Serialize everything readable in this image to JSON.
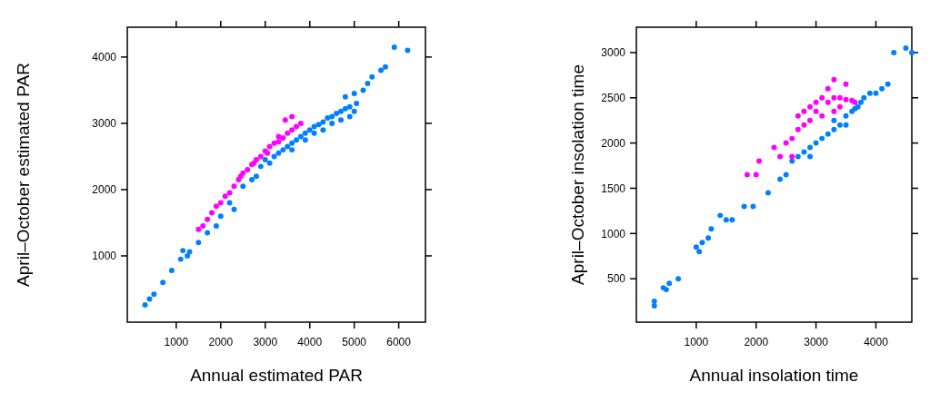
{
  "chart_data": [
    {
      "type": "scatter",
      "xlabel": "Annual estimated PAR",
      "ylabel": "April–October estimated PAR",
      "xlim": [
        -100,
        6600
      ],
      "ylim": [
        0,
        4450
      ],
      "xticks": [
        1000,
        2000,
        3000,
        4000,
        5000,
        6000
      ],
      "yticks": [
        1000,
        2000,
        3000,
        4000
      ],
      "marker": "circle",
      "series": [
        {
          "color": "#0080ff",
          "x": [
            300,
            400,
            500,
            700,
            900,
            1100,
            1150,
            1300,
            1250,
            1500,
            1700,
            1900,
            2000,
            2300,
            2200,
            2500,
            2700,
            2800,
            2900,
            3000,
            3100,
            3200,
            3300,
            3400,
            3500,
            3600,
            3600,
            3700,
            3800,
            3900,
            3900,
            4000,
            4100,
            4100,
            4200,
            4300,
            4300,
            4400,
            4500,
            4500,
            4600,
            4700,
            4700,
            4800,
            4900,
            4900,
            5000,
            5050,
            4800,
            5000,
            5200,
            5300,
            5400,
            5600,
            5700,
            5900,
            6200
          ],
          "values": [
            260,
            350,
            420,
            600,
            780,
            950,
            1080,
            1060,
            1000,
            1200,
            1350,
            1450,
            1600,
            1700,
            1800,
            2050,
            2150,
            2200,
            2350,
            2450,
            2400,
            2500,
            2550,
            2600,
            2650,
            2700,
            2600,
            2750,
            2800,
            2850,
            2750,
            2900,
            2950,
            2850,
            2980,
            3020,
            2900,
            3080,
            3100,
            3000,
            3150,
            3180,
            3050,
            3220,
            3250,
            3100,
            3180,
            3300,
            3400,
            3450,
            3500,
            3600,
            3700,
            3800,
            3850,
            4150,
            4100
          ]
        },
        {
          "color": "#ff00ff",
          "x": [
            1500,
            1600,
            1700,
            1800,
            1900,
            2000,
            2100,
            2200,
            2300,
            2400,
            2450,
            2500,
            2600,
            2700,
            2750,
            2800,
            2900,
            3000,
            3050,
            3100,
            3200,
            3300,
            3300,
            3400,
            3500,
            3600,
            3700,
            3800,
            3450,
            3600
          ],
          "values": [
            1400,
            1450,
            1550,
            1650,
            1750,
            1800,
            1900,
            1950,
            2050,
            2150,
            2200,
            2250,
            2300,
            2380,
            2400,
            2450,
            2500,
            2580,
            2550,
            2650,
            2700,
            2720,
            2800,
            2780,
            2850,
            2900,
            2950,
            3000,
            3050,
            3100
          ]
        }
      ]
    },
    {
      "type": "scatter",
      "xlabel": "Annual insolation time",
      "ylabel": "April–October insolation time",
      "xlim": [
        0,
        4600
      ],
      "ylim": [
        20,
        3280
      ],
      "xticks": [
        1000,
        2000,
        3000,
        4000
      ],
      "yticks": [
        500,
        1000,
        1500,
        2000,
        2500,
        3000
      ],
      "marker": "circle",
      "series": [
        {
          "color": "#0080ff",
          "x": [
            300,
            300,
            450,
            500,
            550,
            700,
            1000,
            1100,
            1050,
            1200,
            1250,
            1400,
            1500,
            1600,
            1800,
            1950,
            2200,
            2400,
            2500,
            2600,
            2700,
            2800,
            2900,
            3000,
            2900,
            3100,
            3200,
            3300,
            3300,
            3400,
            3500,
            3500,
            3600,
            3700,
            3650,
            3750,
            3800,
            3900,
            4000,
            4100,
            4200,
            4300,
            4500,
            4600
          ],
          "values": [
            200,
            250,
            400,
            380,
            450,
            500,
            850,
            900,
            800,
            950,
            1050,
            1200,
            1150,
            1150,
            1300,
            1300,
            1450,
            1600,
            1650,
            1800,
            1850,
            1900,
            1950,
            2000,
            1850,
            2050,
            2100,
            2150,
            2250,
            2200,
            2300,
            2200,
            2350,
            2400,
            2380,
            2450,
            2500,
            2550,
            2550,
            2600,
            2650,
            3000,
            3050,
            3000
          ]
        },
        {
          "color": "#ff00ff",
          "x": [
            1850,
            2000,
            2050,
            2300,
            2400,
            2500,
            2600,
            2600,
            2700,
            2700,
            2800,
            2800,
            2900,
            2900,
            3000,
            3000,
            3100,
            3100,
            3200,
            3300,
            3300,
            3400,
            3400,
            3500,
            3600,
            3650,
            3500,
            3300,
            3200
          ],
          "values": [
            1650,
            1650,
            1800,
            1950,
            1850,
            2000,
            2050,
            1850,
            2150,
            2300,
            2200,
            2350,
            2400,
            2250,
            2350,
            2450,
            2500,
            2300,
            2450,
            2500,
            2350,
            2500,
            2400,
            2480,
            2470,
            2450,
            2650,
            2700,
            2600
          ]
        }
      ]
    }
  ]
}
